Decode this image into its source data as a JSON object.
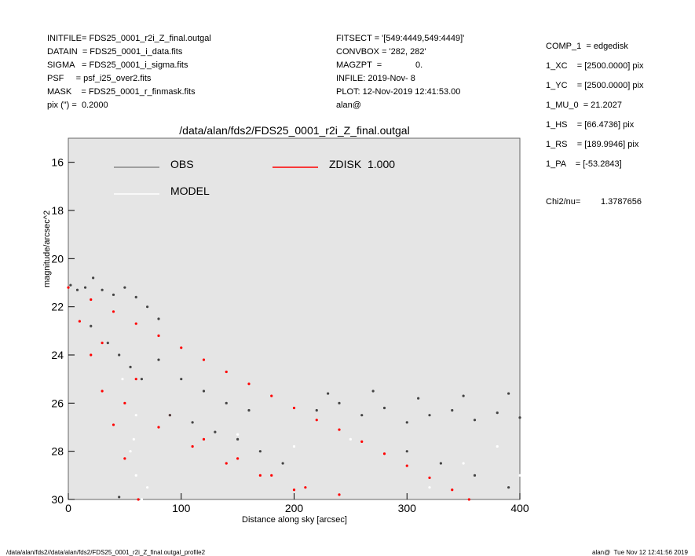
{
  "header": {
    "left": [
      "INITFILE= FDS25_0001_r2i_Z_final.outgal",
      "DATAIN  = FDS25_0001_i_data.fits",
      "SIGMA   = FDS25_0001_i_sigma.fits",
      "PSF     = psf_i25_over2.fits",
      "MASK    = FDS25_0001_r_finmask.fits",
      "pix (\") =  0.2000"
    ],
    "middle": [
      "FITSECT = '[549:4449,549:4449]'",
      "CONVBOX = '282, 282'",
      "MAGZPT  =              0.",
      "INFILE: 2019-Nov- 8",
      "PLOT: 12-Nov-2019 12:41:53.00",
      "alan@"
    ],
    "right": [
      "COMP_1  = edgedisk",
      "1_XC    = [2500.0000] pix",
      "1_YC    = [2500.0000] pix",
      "1_MU_0  = 21.2027",
      "1_HS    = [66.4736] pix",
      "1_RS    = [189.9946] pix",
      "1_PA    = [-53.2843]"
    ],
    "chi_label": "Chi2/nu=",
    "chi_value": "1.3787656"
  },
  "footer": {
    "left": "/data/alan/fds2//data/alan/fds2/FDS25_0001_r2i_Z_final.outgal_profile2",
    "right": "alan@  Tue Nov 12 12:41:56 2019"
  },
  "chart_data": {
    "type": "scatter",
    "title": "/data/alan/fds2/FDS25_0001_r2i_Z_final.outgal",
    "xlabel": "Distance along sky [arcsec]",
    "ylabel": "magnitude/arcsec^2",
    "xlim": [
      0,
      400
    ],
    "xticks": [
      0,
      100,
      200,
      300,
      400
    ],
    "ylim": [
      30,
      15
    ],
    "yticks": [
      16,
      18,
      20,
      22,
      24,
      26,
      28,
      30
    ],
    "legend": "upper left",
    "series": [
      {
        "name": "OBS",
        "color": "#444444",
        "legend_color": "#888888",
        "x": [
          2,
          8,
          15,
          22,
          30,
          40,
          50,
          60,
          70,
          80,
          20,
          35,
          45,
          55,
          65,
          80,
          100,
          120,
          140,
          160,
          90,
          110,
          130,
          150,
          170,
          190,
          220,
          240,
          260,
          280,
          300,
          320,
          340,
          360,
          380,
          400,
          230,
          270,
          310,
          350,
          390,
          300,
          330,
          360,
          390,
          45
        ],
        "values": [
          21.1,
          21.3,
          21.2,
          20.8,
          21.3,
          21.5,
          21.2,
          21.6,
          22.0,
          22.5,
          22.8,
          23.5,
          24.0,
          24.5,
          25.0,
          24.2,
          25.0,
          25.5,
          26.0,
          26.3,
          26.5,
          26.8,
          27.2,
          27.5,
          28.0,
          28.5,
          26.3,
          26.0,
          26.5,
          26.2,
          26.8,
          26.5,
          26.3,
          26.7,
          26.4,
          26.6,
          25.6,
          25.5,
          25.8,
          25.7,
          25.6,
          28.0,
          28.5,
          29.0,
          29.5,
          29.9
        ]
      },
      {
        "name": "MODEL",
        "color": "#ffffff",
        "x": [
          55,
          60,
          65,
          70,
          150,
          200,
          250,
          300,
          350,
          400,
          320,
          380,
          60,
          58,
          48
        ],
        "values": [
          28,
          29,
          30,
          29.5,
          27.3,
          27.8,
          27.5,
          28,
          28.5,
          29,
          29.5,
          27.8,
          26.5,
          27.5,
          25
        ]
      },
      {
        "name": "ZDISK  1.000",
        "color": "#ff0000",
        "x": [
          0,
          20,
          40,
          60,
          80,
          100,
          120,
          140,
          160,
          180,
          200,
          220,
          240,
          260,
          280,
          300,
          320,
          340,
          355,
          10,
          20,
          30,
          40,
          50,
          62,
          30,
          60,
          90,
          120,
          150,
          180,
          210,
          240,
          50,
          80,
          110,
          140,
          170,
          200
        ],
        "values": [
          21.2,
          21.7,
          22.2,
          22.7,
          23.2,
          23.7,
          24.2,
          24.7,
          25.2,
          25.7,
          26.2,
          26.7,
          27.1,
          27.6,
          28.1,
          28.6,
          29.1,
          29.6,
          30.0,
          22.6,
          24.0,
          25.5,
          26.9,
          28.3,
          30.0,
          23.5,
          25.0,
          26.5,
          27.5,
          28.3,
          29.0,
          29.5,
          29.8,
          26.0,
          27.0,
          27.8,
          28.5,
          29.0,
          29.6
        ]
      }
    ]
  }
}
